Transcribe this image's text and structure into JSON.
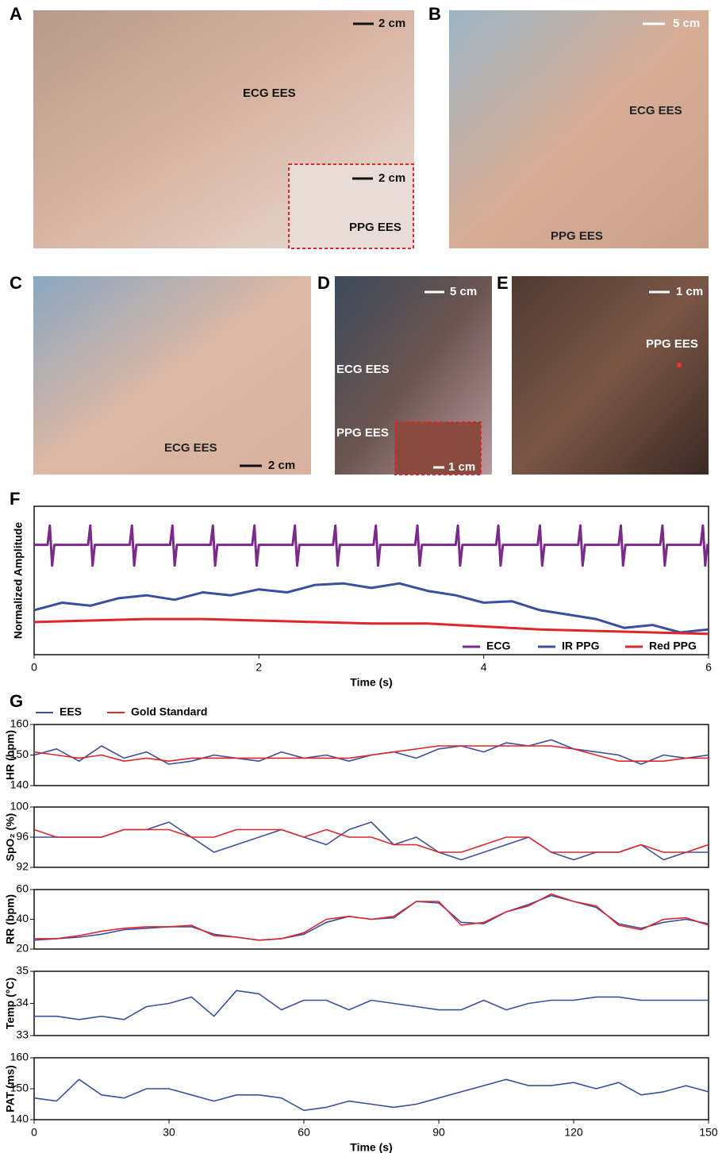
{
  "photos": [
    {
      "label": "A",
      "scale": "2 cm",
      "annotations": [
        "ECG EES"
      ],
      "inset": {
        "scale": "2 cm",
        "annotation": "PPG EES"
      }
    },
    {
      "label": "B",
      "scale": "5 cm",
      "annotations": [
        "ECG EES",
        "PPG EES"
      ]
    },
    {
      "label": "C",
      "scale": "2 cm",
      "annotations": [
        "ECG EES"
      ]
    },
    {
      "label": "D",
      "scale": "5 cm",
      "annotations": [
        "ECG EES",
        "PPG EES"
      ],
      "inset": {
        "scale": "1 cm"
      }
    },
    {
      "label": "E",
      "scale": "1 cm",
      "annotations": [
        "PPG EES"
      ]
    }
  ],
  "chart_data": [
    {
      "type": "line",
      "panel_label": "F",
      "ylabel": "Normalized Amplitude",
      "xlabel": "Time (s)",
      "xlim": [
        0,
        6
      ],
      "xticks": [
        0,
        2,
        4,
        6
      ],
      "ylim": [
        0,
        1
      ],
      "legend": "lower right",
      "series": [
        {
          "name": "ECG",
          "color": "#7b2a8c",
          "x": [
            0,
            0.12,
            0.14,
            0.16,
            0.18,
            0.48,
            0.5,
            0.52,
            0.54,
            0.85,
            0.87,
            0.89,
            0.91,
            1.21,
            1.23,
            1.25,
            1.27,
            1.57,
            1.59,
            1.61,
            1.63,
            1.94,
            1.96,
            1.98,
            2,
            2.3,
            2.32,
            2.34,
            2.36,
            2.66,
            2.68,
            2.7,
            2.72,
            3.02,
            3.04,
            3.06,
            3.08,
            3.39,
            3.41,
            3.43,
            3.45,
            3.75,
            3.77,
            3.79,
            3.81,
            4.11,
            4.13,
            4.15,
            4.17,
            4.48,
            4.5,
            4.52,
            4.54,
            4.84,
            4.86,
            4.88,
            4.9,
            5.2,
            5.22,
            5.24,
            5.26,
            5.57,
            5.59,
            5.61,
            5.63,
            5.93,
            5.95,
            5.97,
            5.99,
            6
          ],
          "values": [
            0.74,
            0.74,
            0.87,
            0.6,
            0.74,
            0.74,
            0.87,
            0.6,
            0.74,
            0.74,
            0.87,
            0.6,
            0.74,
            0.74,
            0.87,
            0.6,
            0.74,
            0.74,
            0.87,
            0.6,
            0.74,
            0.74,
            0.87,
            0.6,
            0.74,
            0.74,
            0.87,
            0.6,
            0.74,
            0.74,
            0.87,
            0.6,
            0.74,
            0.74,
            0.87,
            0.6,
            0.74,
            0.74,
            0.87,
            0.6,
            0.74,
            0.74,
            0.87,
            0.6,
            0.74,
            0.74,
            0.87,
            0.6,
            0.74,
            0.74,
            0.87,
            0.6,
            0.74,
            0.74,
            0.87,
            0.6,
            0.74,
            0.74,
            0.87,
            0.6,
            0.74,
            0.74,
            0.87,
            0.6,
            0.74,
            0.74,
            0.87,
            0.6,
            0.74,
            0.74
          ]
        },
        {
          "name": "IR PPG",
          "color": "#3b4fa0",
          "x": [
            0,
            0.25,
            0.5,
            0.75,
            1,
            1.25,
            1.5,
            1.75,
            2,
            2.25,
            2.5,
            2.75,
            3,
            3.25,
            3.5,
            3.75,
            4,
            4.25,
            4.5,
            4.75,
            5,
            5.25,
            5.5,
            5.75,
            6
          ],
          "values": [
            0.3,
            0.35,
            0.33,
            0.38,
            0.4,
            0.37,
            0.42,
            0.4,
            0.44,
            0.42,
            0.47,
            0.48,
            0.45,
            0.48,
            0.43,
            0.4,
            0.35,
            0.36,
            0.3,
            0.27,
            0.24,
            0.18,
            0.2,
            0.15,
            0.17
          ]
        },
        {
          "name": "Red PPG",
          "color": "#e0262b",
          "x": [
            0,
            0.5,
            1,
            1.5,
            2,
            2.5,
            3,
            3.5,
            4,
            4.5,
            5,
            5.5,
            6
          ],
          "values": [
            0.22,
            0.23,
            0.24,
            0.24,
            0.23,
            0.22,
            0.21,
            0.21,
            0.19,
            0.17,
            0.16,
            0.15,
            0.14
          ]
        }
      ]
    },
    {
      "type": "line",
      "panel_label": "G",
      "ylabel": "HR (bpm)",
      "xlim": [
        0,
        150
      ],
      "ylim": [
        140,
        160
      ],
      "yticks": [
        140,
        150,
        160
      ],
      "legend": "above",
      "x": [
        0,
        5,
        10,
        15,
        20,
        25,
        30,
        35,
        40,
        45,
        50,
        55,
        60,
        65,
        70,
        75,
        80,
        85,
        90,
        95,
        100,
        105,
        110,
        115,
        120,
        125,
        130,
        135,
        140,
        145,
        150
      ],
      "series": [
        {
          "name": "EES",
          "color": "#3b4fa0",
          "values": [
            150,
            152,
            148,
            153,
            149,
            151,
            147,
            148,
            150,
            149,
            148,
            151,
            149,
            150,
            148,
            150,
            151,
            149,
            152,
            153,
            151,
            154,
            153,
            155,
            152,
            151,
            150,
            147,
            150,
            149,
            150
          ]
        },
        {
          "name": "Gold Standard",
          "color": "#e0262b",
          "values": [
            151,
            150,
            149,
            150,
            148,
            149,
            148,
            149,
            149,
            149,
            149,
            149,
            149,
            149,
            149,
            150,
            151,
            152,
            153,
            153,
            153,
            153,
            153,
            153,
            152,
            150,
            148,
            148,
            148,
            149,
            149
          ]
        }
      ]
    },
    {
      "type": "line",
      "ylabel": "SpO₂ (%)",
      "xlim": [
        0,
        150
      ],
      "ylim": [
        92,
        100
      ],
      "yticks": [
        92,
        96,
        100
      ],
      "x": [
        0,
        5,
        10,
        15,
        20,
        25,
        30,
        35,
        40,
        45,
        50,
        55,
        60,
        65,
        70,
        75,
        80,
        85,
        90,
        95,
        100,
        105,
        110,
        115,
        120,
        125,
        130,
        135,
        140,
        145,
        150
      ],
      "series": [
        {
          "name": "EES",
          "color": "#3b4fa0",
          "values": [
            96,
            96,
            96,
            96,
            97,
            97,
            98,
            96,
            94,
            95,
            96,
            97,
            96,
            95,
            97,
            98,
            95,
            96,
            94,
            93,
            94,
            95,
            96,
            94,
            93,
            94,
            94,
            95,
            93,
            94,
            94
          ]
        },
        {
          "name": "Gold Standard",
          "color": "#e0262b",
          "values": [
            97,
            96,
            96,
            96,
            97,
            97,
            97,
            96,
            96,
            97,
            97,
            97,
            96,
            97,
            96,
            96,
            95,
            95,
            94,
            94,
            95,
            96,
            96,
            94,
            94,
            94,
            94,
            95,
            94,
            94,
            95
          ]
        }
      ]
    },
    {
      "type": "line",
      "ylabel": "RR (bpm)",
      "xlim": [
        0,
        150
      ],
      "ylim": [
        20,
        60
      ],
      "yticks": [
        20,
        40,
        60
      ],
      "x": [
        0,
        5,
        10,
        15,
        20,
        25,
        30,
        35,
        40,
        45,
        50,
        55,
        60,
        65,
        70,
        75,
        80,
        85,
        90,
        95,
        100,
        105,
        110,
        115,
        120,
        125,
        130,
        135,
        140,
        145,
        150
      ],
      "series": [
        {
          "name": "EES",
          "color": "#3b4fa0",
          "values": [
            26,
            27,
            28,
            30,
            33,
            34,
            35,
            35,
            30,
            28,
            26,
            27,
            30,
            38,
            42,
            40,
            41,
            52,
            51,
            38,
            37,
            45,
            50,
            56,
            52,
            48,
            37,
            34,
            38,
            40,
            37
          ]
        },
        {
          "name": "Gold Standard",
          "color": "#e0262b",
          "values": [
            27,
            27,
            29,
            32,
            34,
            35,
            35,
            36,
            29,
            28,
            26,
            27,
            31,
            40,
            42,
            40,
            42,
            52,
            52,
            36,
            38,
            45,
            49,
            57,
            52,
            49,
            36,
            33,
            40,
            41,
            36
          ]
        }
      ]
    },
    {
      "type": "line",
      "ylabel": "Temp (°C)",
      "xlim": [
        0,
        150
      ],
      "ylim": [
        33,
        35
      ],
      "yticks": [
        33,
        34,
        35
      ],
      "x": [
        0,
        5,
        10,
        15,
        20,
        25,
        30,
        35,
        40,
        45,
        50,
        55,
        60,
        65,
        70,
        75,
        80,
        85,
        90,
        95,
        100,
        105,
        110,
        115,
        120,
        125,
        130,
        135,
        140,
        145,
        150
      ],
      "series": [
        {
          "name": "EES",
          "color": "#3b4fa0",
          "values": [
            33.6,
            33.6,
            33.5,
            33.6,
            33.5,
            33.9,
            34,
            34.2,
            33.6,
            34.4,
            34.3,
            33.8,
            34.1,
            34.1,
            33.8,
            34.1,
            34,
            33.9,
            33.8,
            33.8,
            34.1,
            33.8,
            34,
            34.1,
            34.1,
            34.2,
            34.2,
            34.1,
            34.1,
            34.1,
            34.1
          ]
        }
      ]
    },
    {
      "type": "line",
      "ylabel": "PAT (ms)",
      "xlabel": "Time (s)",
      "xlim": [
        0,
        150
      ],
      "xticks": [
        0,
        30,
        60,
        90,
        120,
        150
      ],
      "ylim": [
        140,
        160
      ],
      "yticks": [
        140,
        150,
        160
      ],
      "x": [
        0,
        5,
        10,
        15,
        20,
        25,
        30,
        35,
        40,
        45,
        50,
        55,
        60,
        65,
        70,
        75,
        80,
        85,
        90,
        95,
        100,
        105,
        110,
        115,
        120,
        125,
        130,
        135,
        140,
        145,
        150
      ],
      "series": [
        {
          "name": "EES",
          "color": "#3b4fa0",
          "values": [
            147,
            146,
            153,
            148,
            147,
            150,
            150,
            148,
            146,
            148,
            148,
            147,
            143,
            144,
            146,
            145,
            144,
            145,
            147,
            149,
            151,
            153,
            151,
            151,
            152,
            150,
            152,
            148,
            149,
            151,
            149
          ]
        }
      ]
    }
  ]
}
